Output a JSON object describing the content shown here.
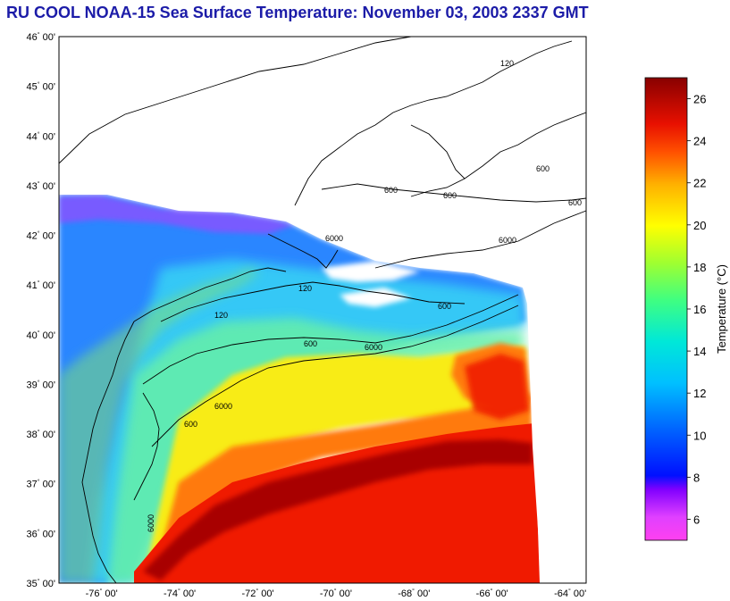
{
  "title": "RU COOL  NOAA-15  Sea Surface Temperature:  November 03, 2003 2337 GMT",
  "axes": {
    "lat_labels": [
      {
        "deg": "46",
        "min": "00'",
        "value": 46
      },
      {
        "deg": "45",
        "min": "00'",
        "value": 45
      },
      {
        "deg": "44",
        "min": "00'",
        "value": 44
      },
      {
        "deg": "43",
        "min": "00'",
        "value": 43
      },
      {
        "deg": "42",
        "min": "00'",
        "value": 42
      },
      {
        "deg": "41",
        "min": "00'",
        "value": 41
      },
      {
        "deg": "40",
        "min": "00'",
        "value": 40
      },
      {
        "deg": "39",
        "min": "00'",
        "value": 39
      },
      {
        "deg": "38",
        "min": "00'",
        "value": 38
      },
      {
        "deg": "37",
        "min": "00'",
        "value": 37
      },
      {
        "deg": "36",
        "min": "00'",
        "value": 36
      },
      {
        "deg": "35",
        "min": "00'",
        "value": 35
      }
    ],
    "lon_labels": [
      {
        "deg": "-76",
        "min": "00'",
        "value": -76
      },
      {
        "deg": "-74",
        "min": "00'",
        "value": -74
      },
      {
        "deg": "-72",
        "min": "00'",
        "value": -72
      },
      {
        "deg": "-70",
        "min": "00'",
        "value": -70
      },
      {
        "deg": "-68",
        "min": "00'",
        "value": -68
      },
      {
        "deg": "-66",
        "min": "00'",
        "value": -66
      },
      {
        "deg": "-64",
        "min": "00'",
        "value": -64
      }
    ],
    "lon_range": [
      -77.0,
      -63.5
    ],
    "lat_range": [
      35,
      46
    ]
  },
  "colorbar": {
    "label": "Temperature (°C)",
    "ticks": [
      "26",
      "24",
      "22",
      "20",
      "18",
      "16",
      "14",
      "12",
      "10",
      "8",
      "6"
    ],
    "tick_values": [
      26,
      24,
      22,
      20,
      18,
      16,
      14,
      12,
      10,
      8,
      6
    ],
    "range": [
      5,
      27
    ],
    "colors": [
      "#ff40f0",
      "#c038ff",
      "#3020d8",
      "#0060ff",
      "#00c8ff",
      "#00e8d0",
      "#40ff80",
      "#c0ff20",
      "#ffff00",
      "#ffb000",
      "#ff6000",
      "#ee1800",
      "#b40000",
      "#800000"
    ]
  },
  "contour_labels": [
    "120",
    "600",
    "6000",
    "600",
    "6000",
    "120",
    "600",
    "6000",
    "600",
    "120",
    "600",
    "6000",
    "600",
    "600",
    "6000"
  ],
  "sst_colors": {
    "cold": "#2a86ff",
    "cool": "#34c8f6",
    "mild": "#66f0a8",
    "warm_mid": "#d2f040",
    "yellow": "#f8ec18",
    "orange": "#ff7a10",
    "red": "#f01a00",
    "dark_red": "#a80000",
    "cloud": "#ffffff",
    "magenta": "#b838ff"
  }
}
